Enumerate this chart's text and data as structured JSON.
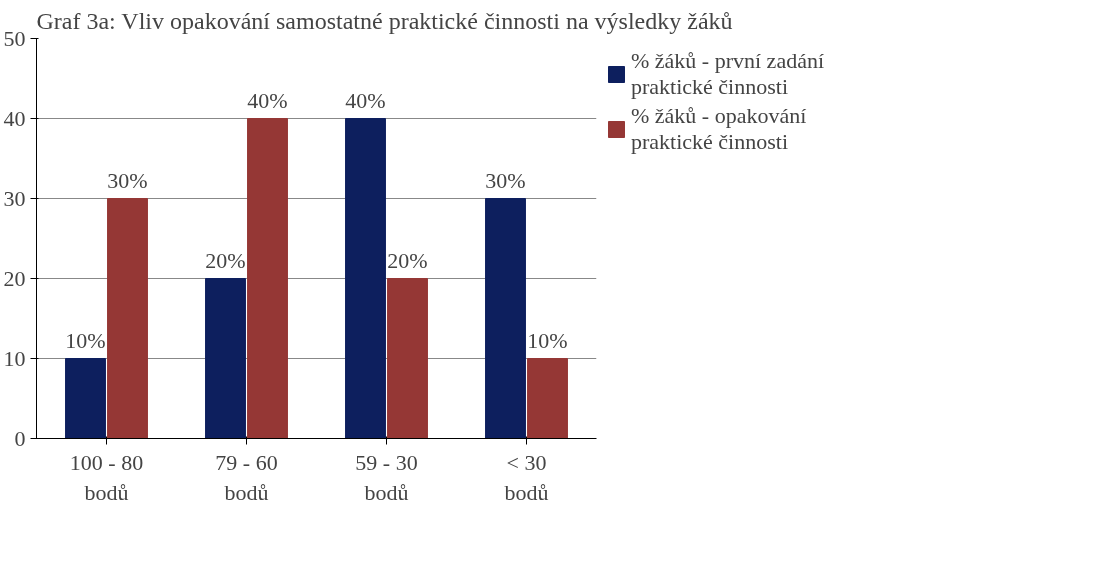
{
  "chart_data": {
    "type": "bar",
    "title": "Graf 3a: Vliv opakování samostatné praktické činnosti na výsledky žáků",
    "categories": [
      "100 - 80\nbodů",
      "79 - 60\nbodů",
      "59 - 30\nbodů",
      "< 30\nbodů"
    ],
    "series": [
      {
        "name": "% žáků - první zadání praktické činnosti",
        "color": "#0d1f5e",
        "values": [
          10,
          20,
          40,
          30
        ],
        "value_labels": [
          "10%",
          "20%",
          "40%",
          "30%"
        ]
      },
      {
        "name": "% žáků - opakování praktické činnosti",
        "color": "#953735",
        "values": [
          30,
          40,
          20,
          10
        ],
        "value_labels": [
          "30%",
          "40%",
          "20%",
          "10%"
        ]
      }
    ],
    "ylim": [
      0,
      50
    ],
    "yticks": [
      0,
      10,
      20,
      30,
      40,
      50
    ],
    "grid": "y",
    "legend": "right"
  }
}
